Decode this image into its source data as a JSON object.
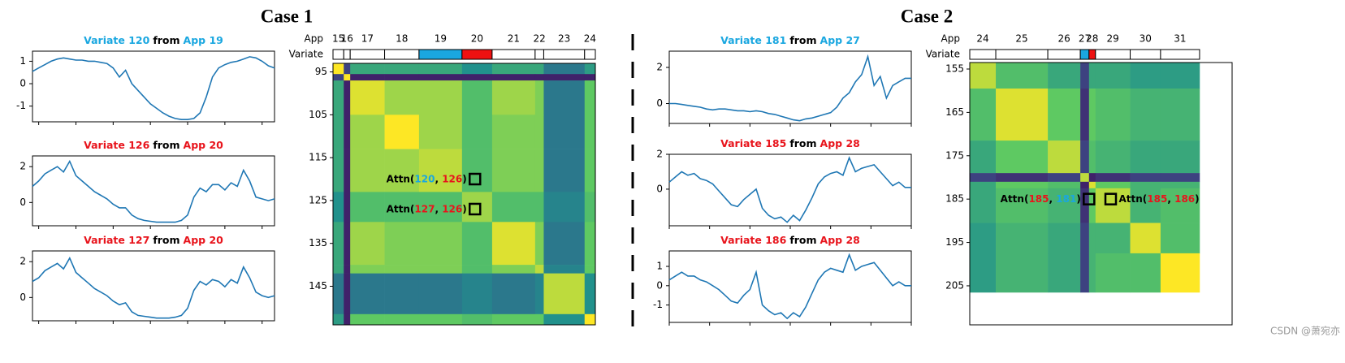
{
  "cases": [
    {
      "title": "Case 1",
      "line_charts": [
        {
          "type": "line",
          "title": [
            {
              "text": "Variate 120",
              "color": "#1aa7e0"
            },
            {
              "text": "from",
              "color": "#000000"
            },
            {
              "text": "App 19",
              "color": "#1aa7e0"
            }
          ],
          "color": "#1f77b4",
          "xlim": [
            0,
            39
          ],
          "xticks": [
            1,
            7,
            13,
            19,
            25,
            31,
            37
          ],
          "ylim": [
            -1.7,
            1.45
          ],
          "yticks": [
            1,
            0,
            -1
          ],
          "values": [
            0.55,
            0.7,
            0.85,
            1.0,
            1.1,
            1.15,
            1.1,
            1.05,
            1.05,
            1.0,
            1.0,
            0.95,
            0.9,
            0.7,
            0.3,
            0.6,
            0.0,
            -0.3,
            -0.6,
            -0.9,
            -1.1,
            -1.3,
            -1.45,
            -1.55,
            -1.6,
            -1.6,
            -1.55,
            -1.3,
            -0.6,
            0.3,
            0.7,
            0.85,
            0.95,
            1.0,
            1.1,
            1.2,
            1.15,
            1.0,
            0.8,
            0.7
          ]
        },
        {
          "type": "line",
          "title": [
            {
              "text": "Variate 126",
              "color": "#e8141c"
            },
            {
              "text": "from",
              "color": "#000000"
            },
            {
              "text": "App 20",
              "color": "#e8141c"
            }
          ],
          "color": "#1f77b4",
          "xlim": [
            0,
            39
          ],
          "xticks": [
            1,
            7,
            13,
            19,
            25,
            31,
            37
          ],
          "ylim": [
            -1.3,
            2.6
          ],
          "yticks": [
            2,
            0
          ],
          "values": [
            0.9,
            1.2,
            1.6,
            1.8,
            2.0,
            1.7,
            2.3,
            1.5,
            1.2,
            0.9,
            0.6,
            0.4,
            0.2,
            -0.1,
            -0.3,
            -0.3,
            -0.7,
            -0.9,
            -1.0,
            -1.05,
            -1.1,
            -1.1,
            -1.1,
            -1.1,
            -1.0,
            -0.7,
            0.3,
            0.8,
            0.6,
            1.0,
            1.0,
            0.7,
            1.1,
            0.9,
            1.8,
            1.2,
            0.3,
            0.2,
            0.1,
            0.2
          ]
        },
        {
          "type": "line",
          "title": [
            {
              "text": "Variate 127",
              "color": "#e8141c"
            },
            {
              "text": "from",
              "color": "#000000"
            },
            {
              "text": "App 20",
              "color": "#e8141c"
            }
          ],
          "color": "#1f77b4",
          "xlim": [
            0,
            39
          ],
          "xticks": [
            1,
            7,
            13,
            19,
            25,
            31,
            37
          ],
          "ylim": [
            -1.3,
            2.6
          ],
          "yticks": [
            2,
            0
          ],
          "values": [
            0.9,
            1.1,
            1.5,
            1.7,
            1.9,
            1.6,
            2.2,
            1.4,
            1.1,
            0.8,
            0.5,
            0.3,
            0.1,
            -0.2,
            -0.4,
            -0.3,
            -0.8,
            -1.0,
            -1.05,
            -1.1,
            -1.15,
            -1.15,
            -1.15,
            -1.1,
            -1.0,
            -0.6,
            0.4,
            0.9,
            0.7,
            1.0,
            0.9,
            0.6,
            1.0,
            0.8,
            1.7,
            1.1,
            0.3,
            0.1,
            0.0,
            0.1
          ]
        }
      ],
      "heatmap": {
        "type": "heatmap",
        "app_label": "App",
        "variate_label": "Variate",
        "apps": [
          "15",
          "16",
          "17",
          "18",
          "19",
          "20",
          "21",
          "22",
          "23",
          "24"
        ],
        "header_colors": [
          "#ffffff",
          "#ffffff",
          "#ffffff",
          "#ffffff",
          "#1aa7e0",
          "#ee1111",
          "#ffffff",
          "#ffffff",
          "#ffffff",
          "#ffffff"
        ],
        "variate_edges": [
          93.5,
          96,
          97.5,
          105.5,
          113.5,
          123.5,
          130.5,
          140.5,
          142.5,
          152,
          154.5
        ],
        "yticks": [
          95,
          105,
          115,
          125,
          135,
          145
        ],
        "matrix": [
          [
            1.0,
            0.2,
            0.6,
            0.6,
            0.6,
            0.5,
            0.6,
            0.6,
            0.4,
            0.55
          ],
          [
            0.2,
            1.0,
            0.1,
            0.1,
            0.1,
            0.1,
            0.1,
            0.1,
            0.1,
            0.1
          ],
          [
            0.6,
            0.1,
            0.95,
            0.85,
            0.85,
            0.7,
            0.85,
            0.8,
            0.4,
            0.75
          ],
          [
            0.6,
            0.1,
            0.85,
            1.0,
            0.85,
            0.7,
            0.8,
            0.8,
            0.4,
            0.75
          ],
          [
            0.6,
            0.1,
            0.85,
            0.85,
            0.9,
            0.7,
            0.8,
            0.8,
            0.4,
            0.75
          ],
          [
            0.5,
            0.1,
            0.7,
            0.7,
            0.7,
            0.85,
            0.7,
            0.7,
            0.45,
            0.7
          ],
          [
            0.6,
            0.1,
            0.85,
            0.8,
            0.8,
            0.7,
            0.95,
            0.8,
            0.4,
            0.75
          ],
          [
            0.6,
            0.1,
            0.8,
            0.8,
            0.8,
            0.7,
            0.8,
            0.9,
            0.45,
            0.75
          ],
          [
            0.4,
            0.1,
            0.4,
            0.4,
            0.4,
            0.45,
            0.4,
            0.45,
            0.9,
            0.5
          ],
          [
            0.55,
            0.1,
            0.75,
            0.75,
            0.75,
            0.7,
            0.75,
            0.75,
            0.5,
            1.0
          ]
        ],
        "annotations": [
          {
            "row": 120,
            "col": 126,
            "side": "left",
            "parts": [
              {
                "text": "Attn(",
                "color": "#000000"
              },
              {
                "text": "120",
                "color": "#1aa7e0"
              },
              {
                "text": ", ",
                "color": "#000000"
              },
              {
                "text": "126",
                "color": "#e8141c"
              },
              {
                "text": ")",
                "color": "#000000"
              }
            ]
          },
          {
            "row": 127,
            "col": 126,
            "side": "left",
            "parts": [
              {
                "text": "Attn(",
                "color": "#000000"
              },
              {
                "text": "127",
                "color": "#e8141c"
              },
              {
                "text": ", ",
                "color": "#000000"
              },
              {
                "text": "126",
                "color": "#e8141c"
              },
              {
                "text": ")",
                "color": "#000000"
              }
            ]
          }
        ]
      }
    },
    {
      "title": "Case 2",
      "line_charts": [
        {
          "type": "line",
          "title": [
            {
              "text": "Variate 181",
              "color": "#1aa7e0"
            },
            {
              "text": "from",
              "color": "#000000"
            },
            {
              "text": "App 27",
              "color": "#1aa7e0"
            }
          ],
          "color": "#1f77b4",
          "xlim": [
            0,
            39
          ],
          "xticks": [
            0,
            6.5,
            13,
            19.5,
            26,
            32.5,
            39
          ],
          "ylim": [
            -1.1,
            2.9
          ],
          "yticks": [
            2,
            0
          ],
          "values": [
            0.0,
            0.0,
            -0.05,
            -0.1,
            -0.15,
            -0.2,
            -0.3,
            -0.35,
            -0.3,
            -0.3,
            -0.35,
            -0.4,
            -0.4,
            -0.45,
            -0.4,
            -0.45,
            -0.55,
            -0.6,
            -0.7,
            -0.8,
            -0.9,
            -0.95,
            -0.85,
            -0.8,
            -0.7,
            -0.6,
            -0.5,
            -0.2,
            0.3,
            0.6,
            1.2,
            1.6,
            2.6,
            1.0,
            1.5,
            0.3,
            1.0,
            1.2,
            1.4,
            1.4
          ]
        },
        {
          "type": "line",
          "title": [
            {
              "text": "Variate 185",
              "color": "#e8141c"
            },
            {
              "text": "from",
              "color": "#000000"
            },
            {
              "text": "App 28",
              "color": "#e8141c"
            }
          ],
          "color": "#1f77b4",
          "xlim": [
            0,
            39
          ],
          "xticks": [
            0,
            6.5,
            13,
            19.5,
            26,
            32.5,
            39
          ],
          "ylim": [
            -2.1,
            2.0
          ],
          "yticks": [
            2,
            0
          ],
          "values": [
            0.4,
            0.7,
            1.0,
            0.8,
            0.9,
            0.6,
            0.5,
            0.3,
            -0.1,
            -0.5,
            -0.9,
            -1.0,
            -0.6,
            -0.3,
            0.0,
            -1.1,
            -1.5,
            -1.7,
            -1.6,
            -1.9,
            -1.5,
            -1.8,
            -1.2,
            -0.5,
            0.3,
            0.7,
            0.9,
            1.0,
            0.8,
            1.8,
            1.0,
            1.2,
            1.3,
            1.4,
            1.0,
            0.6,
            0.2,
            0.4,
            0.1,
            0.1
          ]
        },
        {
          "type": "line",
          "title": [
            {
              "text": "Variate 186",
              "color": "#e8141c"
            },
            {
              "text": "from",
              "color": "#000000"
            },
            {
              "text": "App 28",
              "color": "#e8141c"
            }
          ],
          "color": "#1f77b4",
          "xlim": [
            0,
            39
          ],
          "xticks": [
            0,
            6.5,
            13,
            19.5,
            26,
            32.5,
            39
          ],
          "ylim": [
            -1.9,
            1.8
          ],
          "yticks": [
            1,
            0,
            -1
          ],
          "values": [
            0.3,
            0.5,
            0.7,
            0.5,
            0.5,
            0.3,
            0.2,
            0.0,
            -0.2,
            -0.5,
            -0.8,
            -0.9,
            -0.5,
            -0.2,
            0.7,
            -1.0,
            -1.3,
            -1.5,
            -1.4,
            -1.7,
            -1.4,
            -1.6,
            -1.1,
            -0.4,
            0.3,
            0.7,
            0.9,
            0.8,
            0.7,
            1.6,
            0.8,
            1.0,
            1.1,
            1.2,
            0.8,
            0.4,
            0.0,
            0.2,
            0.0,
            0.0
          ]
        }
      ],
      "heatmap": {
        "type": "heatmap",
        "app_label": "App",
        "variate_label": "Variate",
        "apps": [
          "24",
          "25",
          "26",
          "27",
          "28",
          "29",
          "30",
          "31"
        ],
        "header_colors": [
          "#ffffff",
          "#ffffff",
          "#ffffff",
          "#1aa7e0",
          "#ee1111",
          "#ffffff",
          "#ffffff",
          "#ffffff"
        ],
        "variate_edges": [
          154,
          160,
          172,
          179.5,
          181.5,
          183,
          191,
          198,
          207,
          214.5
        ],
        "yticks": [
          155,
          165,
          175,
          185,
          195,
          205
        ],
        "matrix": [
          [
            0.9,
            0.7,
            0.6,
            0.2,
            0.6,
            0.6,
            0.55,
            0.55
          ],
          [
            0.7,
            0.95,
            0.75,
            0.15,
            0.75,
            0.7,
            0.65,
            0.65
          ],
          [
            0.6,
            0.75,
            0.9,
            0.2,
            0.7,
            0.65,
            0.6,
            0.6
          ],
          [
            0.2,
            0.15,
            0.2,
            0.9,
            0.1,
            0.15,
            0.2,
            0.2
          ],
          [
            0.6,
            0.75,
            0.7,
            0.1,
            0.95,
            0.75,
            0.65,
            0.65
          ],
          [
            0.6,
            0.7,
            0.65,
            0.15,
            0.75,
            0.9,
            0.65,
            0.7
          ],
          [
            0.55,
            0.65,
            0.6,
            0.2,
            0.65,
            0.65,
            0.95,
            0.7
          ],
          [
            0.55,
            0.65,
            0.6,
            0.2,
            0.65,
            0.7,
            0.7,
            1.0
          ]
        ],
        "annotations": [
          {
            "row": 185,
            "col": 181,
            "side": "left",
            "parts": [
              {
                "text": "Attn(",
                "color": "#000000"
              },
              {
                "text": "185",
                "color": "#e8141c"
              },
              {
                "text": ", ",
                "color": "#000000"
              },
              {
                "text": "181",
                "color": "#1aa7e0"
              },
              {
                "text": ")",
                "color": "#000000"
              }
            ]
          },
          {
            "row": 185,
            "col": 186,
            "side": "right",
            "parts": [
              {
                "text": "Attn(",
                "color": "#000000"
              },
              {
                "text": "185",
                "color": "#e8141c"
              },
              {
                "text": ", ",
                "color": "#000000"
              },
              {
                "text": "186",
                "color": "#e8141c"
              },
              {
                "text": ")",
                "color": "#000000"
              }
            ]
          }
        ]
      }
    }
  ],
  "watermark": "CSDN @萧宛亦"
}
